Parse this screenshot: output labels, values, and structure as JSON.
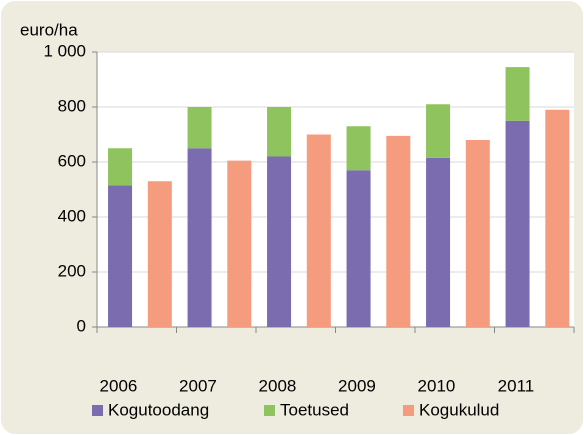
{
  "chart_data": {
    "type": "bar",
    "y_label": "euro/ha",
    "categories": [
      "2006",
      "2007",
      "2008",
      "2009",
      "2010",
      "2011"
    ],
    "series": [
      {
        "name": "Kogutoodang",
        "color": "#7b6cb0",
        "values": [
          515,
          650,
          620,
          570,
          615,
          750
        ]
      },
      {
        "name": "Toetused",
        "color": "#8fc35d",
        "values": [
          135,
          150,
          180,
          160,
          195,
          195
        ]
      },
      {
        "name": "Kogukulud",
        "color": "#f59b7e",
        "values": [
          530,
          605,
          700,
          695,
          680,
          790
        ]
      }
    ],
    "ylim": [
      0,
      1000
    ],
    "yticks": [
      0,
      200,
      400,
      600,
      800,
      {
        "value": 1000,
        "label": "1 000"
      }
    ],
    "grid": true
  }
}
